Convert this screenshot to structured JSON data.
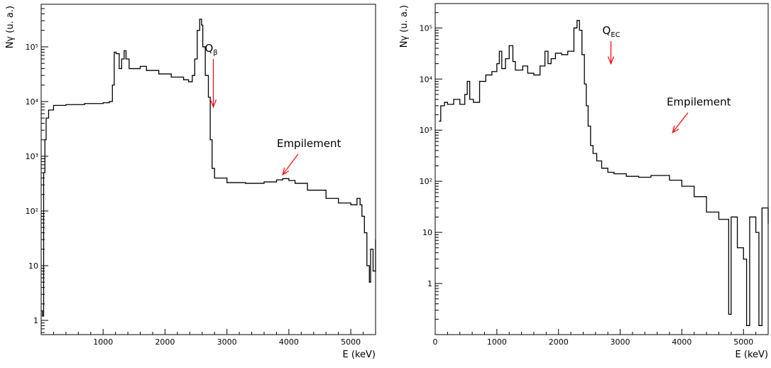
{
  "colors": {
    "spectrum": "#000000",
    "annotation_arrow": "#ff0000",
    "frame": "#000000"
  },
  "chart_data": [
    {
      "type": "line",
      "panel": "left",
      "xlabel": "E (keV)",
      "ylabel": "Nγ (u. a.)",
      "xlim": [
        0,
        5400
      ],
      "ylim": [
        0.55,
        600000
      ],
      "y_scale": "log",
      "x_ticks": [
        1000,
        2000,
        3000,
        4000,
        5000
      ],
      "x_tick_labels": [
        "1000",
        "2000",
        "3000",
        "4000",
        "5000"
      ],
      "y_ticks": [
        1,
        10,
        100,
        1000,
        10000,
        100000
      ],
      "y_tick_labels": [
        "1",
        "10",
        "10²",
        "10³",
        "10⁴",
        "10⁵"
      ],
      "grid": false,
      "series": [
        {
          "x": [
            0,
            20,
            40,
            60,
            80,
            120,
            200,
            400,
            700,
            1000,
            1100,
            1150,
            1180,
            1210,
            1260,
            1300,
            1340,
            1370,
            1420,
            1500,
            1600,
            1700,
            1900,
            2100,
            2300,
            2380,
            2440,
            2480,
            2520,
            2560,
            2590,
            2610,
            2650,
            2700,
            2730,
            2760,
            2800,
            3000,
            3300,
            3600,
            3800,
            3900,
            4000,
            4100,
            4300,
            4600,
            4800,
            5000,
            5100,
            5150,
            5180,
            5220,
            5260,
            5300,
            5320,
            5360,
            5400
          ],
          "y": [
            1.5,
            1.2,
            500,
            2000,
            5000,
            7000,
            8500,
            8800,
            9200,
            9500,
            10000,
            20000,
            80000,
            75000,
            40000,
            60000,
            85000,
            60000,
            40000,
            40000,
            44000,
            37000,
            32000,
            28000,
            25000,
            23000,
            30000,
            60000,
            200000,
            320000,
            250000,
            100000,
            30000,
            12000,
            2000,
            600,
            400,
            330,
            320,
            340,
            370,
            390,
            360,
            320,
            240,
            170,
            140,
            130,
            170,
            130,
            80,
            40,
            10,
            5,
            20,
            8,
            30
          ]
        }
      ],
      "annotations": [
        {
          "symbol": "Q",
          "subscript": "β",
          "arrow_x": 2780,
          "arrow_tail_y": 60000,
          "arrow_head_y": 8000
        },
        {
          "label": "Empilement",
          "arrow_x": 3900,
          "arrow_tail_y": 1100,
          "arrow_head_y": 460,
          "arrow_from_x": 4150
        }
      ]
    },
    {
      "type": "line",
      "panel": "right",
      "xlabel": "E (keV)",
      "ylabel": "Nγ (u. a.)",
      "xlim": [
        0,
        5400
      ],
      "ylim": [
        0.1,
        300000
      ],
      "y_scale": "log",
      "x_ticks": [
        0,
        1000,
        2000,
        3000,
        4000,
        5000
      ],
      "x_tick_labels": [
        "0",
        "1000",
        "2000",
        "3000",
        "4000",
        "5000"
      ],
      "y_ticks": [
        1,
        10,
        100,
        1000,
        10000,
        100000
      ],
      "y_tick_labels": [
        "1",
        "10",
        "10²",
        "10³",
        "10⁴",
        "10⁵"
      ],
      "grid": false,
      "series": [
        {
          "x": [
            60,
            90,
            150,
            200,
            300,
            400,
            480,
            520,
            560,
            620,
            720,
            820,
            920,
            1000,
            1040,
            1080,
            1140,
            1200,
            1260,
            1300,
            1360,
            1420,
            1500,
            1600,
            1700,
            1780,
            1830,
            1880,
            1950,
            2050,
            2150,
            2250,
            2300,
            2340,
            2380,
            2420,
            2450,
            2480,
            2520,
            2560,
            2620,
            2700,
            2800,
            2900,
            3100,
            3300,
            3500,
            3800,
            4000,
            4200,
            4400,
            4600,
            4760,
            4800,
            4900,
            5000,
            5050,
            5100,
            5200,
            5250,
            5300,
            5400
          ],
          "y": [
            1500,
            3000,
            3500,
            3200,
            4000,
            3200,
            5000,
            9000,
            4000,
            3500,
            9000,
            12000,
            14000,
            20000,
            35000,
            16000,
            25000,
            45000,
            22000,
            15000,
            15000,
            18000,
            13000,
            12000,
            18000,
            35000,
            20000,
            25000,
            32000,
            30000,
            35000,
            100000,
            140000,
            90000,
            30000,
            8000,
            3000,
            1200,
            500,
            350,
            250,
            180,
            150,
            140,
            125,
            120,
            130,
            105,
            80,
            50,
            25,
            18,
            0.25,
            20,
            5,
            3,
            0.15,
            20,
            10,
            0.15,
            30,
            15
          ]
        }
      ],
      "annotations": [
        {
          "symbol": "Q",
          "subscript": "EC",
          "arrow_x": 2850,
          "arrow_tail_y": 55000,
          "arrow_head_y": 20000
        },
        {
          "label": "Empilement",
          "arrow_x": 3850,
          "arrow_tail_y": 2200,
          "arrow_head_y": 900,
          "arrow_from_x": 4100
        }
      ]
    }
  ]
}
